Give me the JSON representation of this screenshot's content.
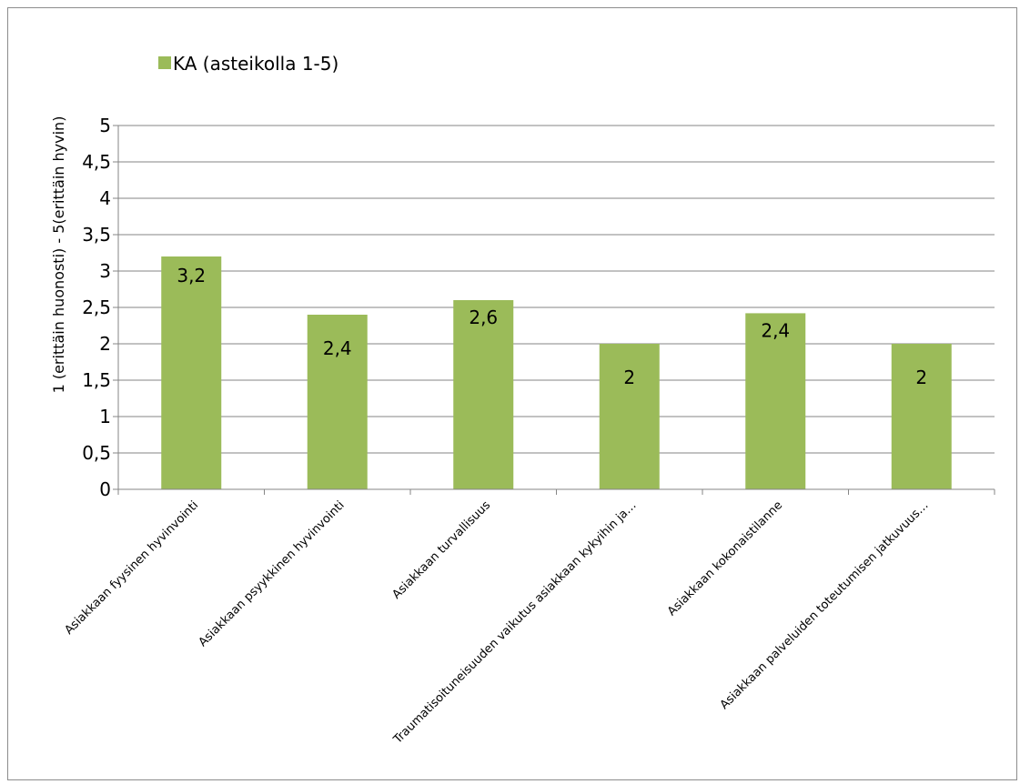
{
  "chart_data": {
    "type": "bar",
    "ylabel": "1 (erittäin huonosti) - 5(erittäin hyvin)",
    "xlabel": "",
    "ylim": [
      0,
      5
    ],
    "yticks": [
      0,
      0.5,
      1,
      1.5,
      2,
      2.5,
      3,
      3.5,
      4,
      4.5,
      5
    ],
    "ytick_labels": [
      "0",
      "0,5",
      "1",
      "1,5",
      "2",
      "2,5",
      "3",
      "3,5",
      "4",
      "4,5",
      "5"
    ],
    "grid": true,
    "legend_position": "top-left",
    "categories": [
      "Asiakkaan fyysinen hyvinvointi",
      "Asiakkaan psyykkinen hyvinvointi",
      "Asiakkaan turvallisuus",
      "Traumatisoituneisuuden vaikutus asiakkaan kykyihin ja…",
      "Asiakkaan kokonaistilanne",
      "Asiakkaan palveluiden toteutumisen jatkuvuus…"
    ],
    "series": [
      {
        "name": "KA (asteikolla 1-5)",
        "color": "#9bbb59",
        "values": [
          3.2,
          2.4,
          2.6,
          2.0,
          2.42,
          2.0
        ],
        "data_labels": [
          "3,2",
          "2,4",
          "2,6",
          "2",
          "2,4",
          "2"
        ]
      }
    ]
  }
}
